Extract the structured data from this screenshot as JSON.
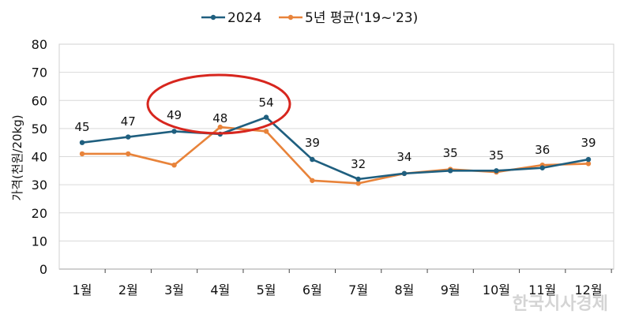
{
  "watermark": "한국시사경제",
  "chart_data": {
    "type": "line",
    "title": "",
    "xlabel": "",
    "ylabel": "가격(천원/20kg)",
    "ylim": [
      0,
      80
    ],
    "yticks": [
      0,
      10,
      20,
      30,
      40,
      50,
      60,
      70,
      80
    ],
    "categories": [
      "1월",
      "2월",
      "3월",
      "4월",
      "5월",
      "6월",
      "7월",
      "8월",
      "9월",
      "10월",
      "11월",
      "12월"
    ],
    "grid": true,
    "legend_position": "top-center",
    "series": [
      {
        "name": "2024",
        "color": "#1f5f7f",
        "values": [
          45,
          47,
          49,
          48,
          54,
          39,
          32,
          34,
          35,
          35,
          36,
          39
        ],
        "labels": [
          "45",
          "47",
          "49",
          "48",
          "54",
          "39",
          "32",
          "34",
          "35",
          "35",
          "36",
          "39"
        ]
      },
      {
        "name": "5년 평균('19~'23)",
        "color": "#e8833a",
        "values": [
          41,
          41,
          37,
          50.5,
          49,
          31.5,
          30.5,
          34,
          35.5,
          34.5,
          37,
          37.5
        ]
      }
    ],
    "annotation": {
      "type": "ellipse",
      "color": "#d7261e",
      "around_categories": [
        "3월",
        "4월",
        "5월"
      ]
    }
  }
}
